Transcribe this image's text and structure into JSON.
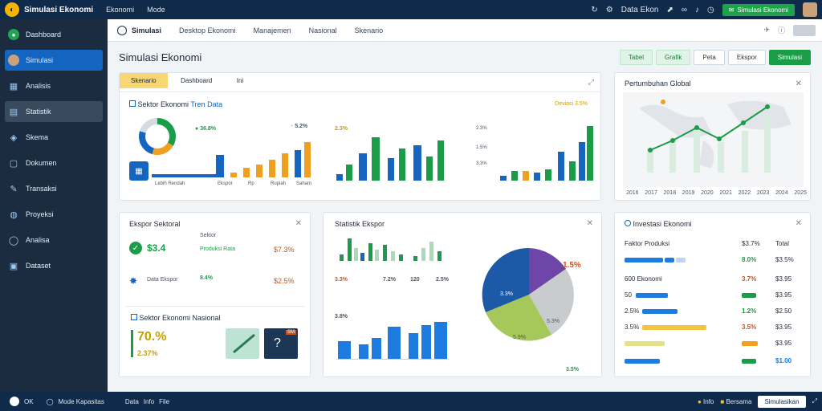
{
  "app": {
    "title": "Simulasi Ekonomi",
    "menu": [
      "Ekonomi",
      "Mode"
    ],
    "topbar_button": "Simulasi Ekonomi",
    "topbar_user_label": "Data Ekon"
  },
  "sidebar": {
    "items": [
      {
        "label": "Dashboard"
      },
      {
        "label": "Simulasi"
      },
      {
        "label": "Analisis"
      },
      {
        "label": "Statistik"
      },
      {
        "label": "Skema"
      },
      {
        "label": "Dokumen"
      },
      {
        "label": "Transaksi"
      },
      {
        "label": "Proyeksi"
      },
      {
        "label": "Analisa"
      },
      {
        "label": "Dataset"
      }
    ]
  },
  "tabbar": {
    "home": "Simulasi",
    "tabs": [
      "Desktop Ekonomi",
      "Manajemen",
      "Nasional",
      "Skenario"
    ]
  },
  "page": {
    "title": "Simulasi Ekonomi",
    "buttons": [
      "Tabel",
      "Grafik",
      "Peta",
      "Ekspor",
      "Simulasi"
    ]
  },
  "card1": {
    "tabs": [
      "Skenario",
      "Dashboard",
      "Ini"
    ],
    "title": "Sektor Ekonomi",
    "title_sub": "Tren Data",
    "right_label": "Deviasi 3.5%",
    "kpi1": "36.8%",
    "kpi2": "5.2%",
    "kpi3_head": "2.3%",
    "axis_labels": [
      "Lebih Rendah",
      "Ekspor",
      "Rp",
      "Rupiah",
      "Saham"
    ],
    "chart_c_top": "2.3%",
    "chart_c_mid": "1.5%",
    "chart_c_low": "3.3%"
  },
  "card_world": {
    "title": "Pertumbuhan Global",
    "axis_labels": [
      "2016",
      "2017",
      "2018",
      "2019",
      "2020",
      "2021",
      "2022",
      "2023",
      "2024",
      "2025"
    ]
  },
  "card_left2": {
    "title": "Ekspor Sektoral",
    "k1": "$3.4",
    "k1_sub": "Sektor",
    "k1_mid": "Produksi Rata",
    "k1_right": "$7.3%",
    "k2_label": "Data Ekspor",
    "k2_val": "8.4%",
    "k2_right": "$2.5%",
    "section": "Sektor Ekonomi Nasional",
    "big": "70.%",
    "big_sub": "2.37%",
    "thumb_label": "SM"
  },
  "card_mid": {
    "title": "Statistik Ekspor",
    "vals": [
      "3.3%",
      "7.2%",
      "120",
      "2.5%"
    ],
    "left_label": "3.8%",
    "pie_labels": [
      "1.5%",
      "3.3%",
      "5.3%",
      "5.9%",
      "3.5%"
    ]
  },
  "card_right2": {
    "title": "Investasi Ekonomi",
    "header_l": "Faktor Produksi",
    "header_m": "$3.7%",
    "header_r": "Total",
    "rows": [
      {
        "l": "",
        "m": "8.0%",
        "r": "$3.5%"
      },
      {
        "l": "600 Ekonomi",
        "m": "3.7%",
        "r": "$3.95"
      },
      {
        "l": "50",
        "m": "",
        "r": "$3.95"
      },
      {
        "l": "2.5%",
        "m": "1.2%",
        "r": "$2.50"
      },
      {
        "l": "3.5%",
        "m": "3.5%",
        "r": "$3.95"
      },
      {
        "l": "",
        "m": "",
        "r": "$3.95"
      },
      {
        "l": "",
        "m": "",
        "r": "$1.00"
      }
    ]
  },
  "bottom": {
    "left": [
      "OK",
      "Mode Kapasitas"
    ],
    "mid": [
      "Data",
      "Info",
      "File"
    ],
    "right_tags": [
      "Info",
      "Bersama"
    ],
    "right_button": "Simulasikan"
  }
}
